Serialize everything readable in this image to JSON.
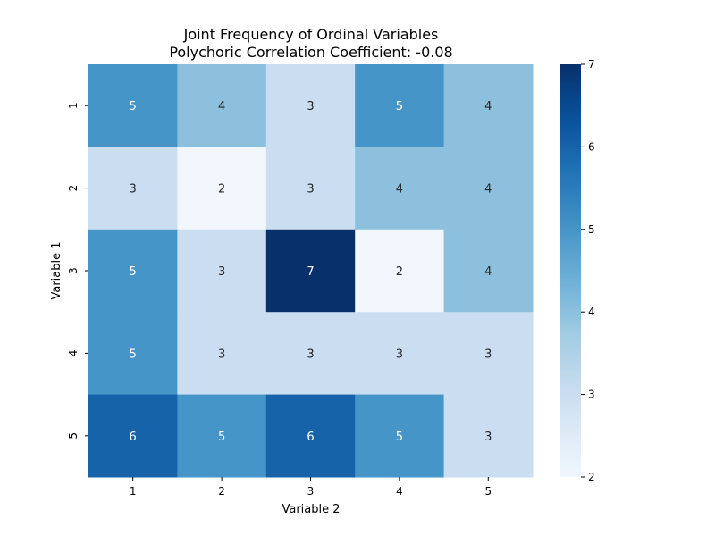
{
  "chart_data": {
    "type": "heatmap",
    "title": "Joint Frequency of Ordinal Variables",
    "subtitle": "Polychoric Correlation Coefficient: -0.08",
    "xlabel": "Variable 2",
    "ylabel": "Variable 1",
    "x_categories": [
      "1",
      "2",
      "3",
      "4",
      "5"
    ],
    "y_categories": [
      "1",
      "2",
      "3",
      "4",
      "5"
    ],
    "values": [
      [
        5,
        4,
        3,
        5,
        4
      ],
      [
        3,
        2,
        3,
        4,
        4
      ],
      [
        5,
        3,
        7,
        2,
        4
      ],
      [
        5,
        3,
        3,
        3,
        3
      ],
      [
        6,
        5,
        6,
        5,
        3
      ]
    ],
    "colorbar": {
      "min": 2,
      "max": 7,
      "ticks": [
        "2",
        "3",
        "4",
        "5",
        "6",
        "7"
      ],
      "colormap": "Blues"
    },
    "grid": false,
    "legend": "colorbar-right"
  }
}
